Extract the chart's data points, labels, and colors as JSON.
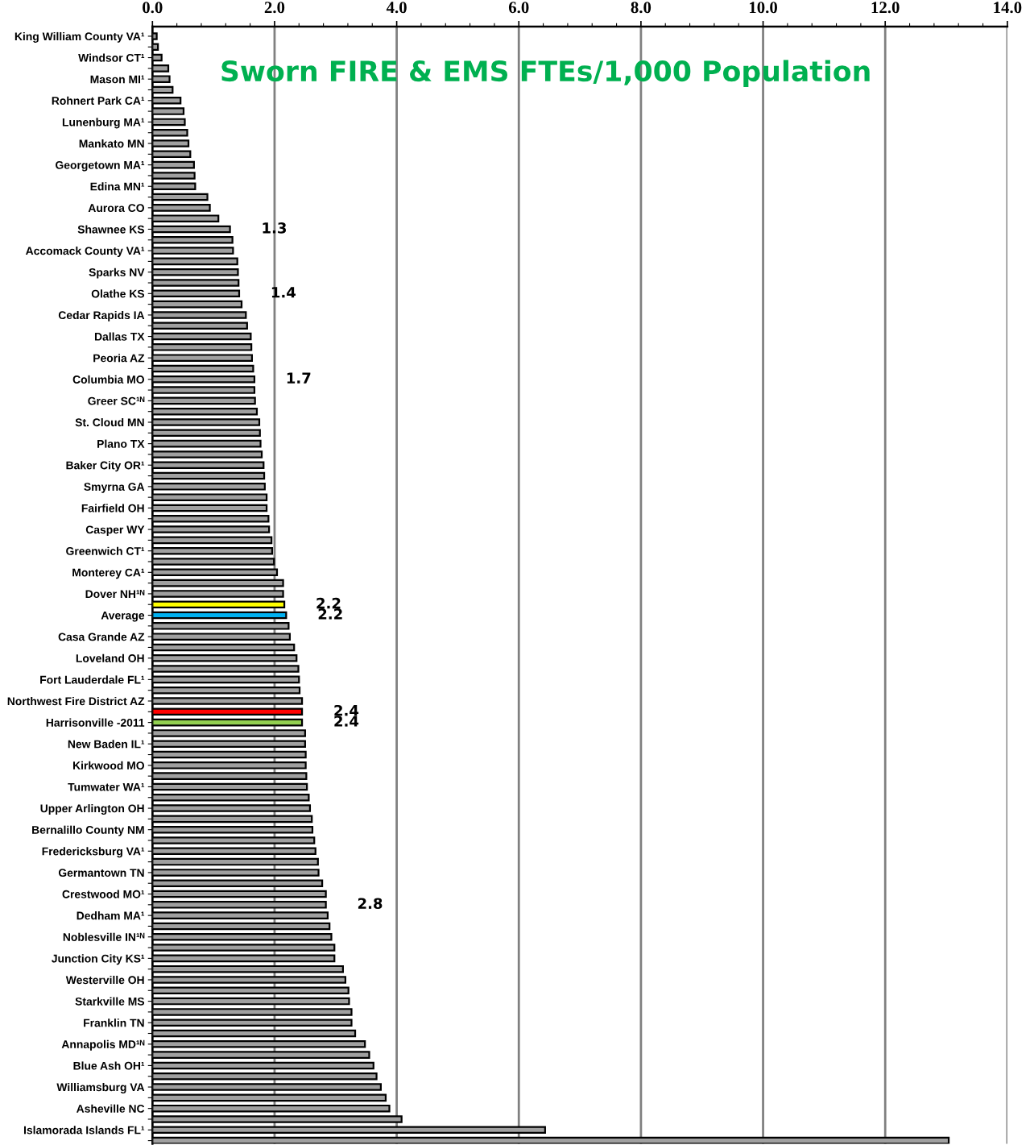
{
  "chart_data": {
    "type": "bar",
    "orientation": "horizontal",
    "title": "Sworn FIRE & EMS FTEs/1,000 Population",
    "categories": [
      "King William County VA¹",
      null,
      "Windsor CT¹",
      null,
      "Mason MI¹",
      null,
      "Rohnert Park CA¹",
      null,
      "Lunenburg MA¹",
      null,
      "Mankato MN",
      null,
      "Georgetown MA¹",
      null,
      "Edina MN¹",
      null,
      "Aurora CO",
      null,
      "Shawnee KS",
      null,
      "Accomack County VA¹",
      null,
      "Sparks NV",
      null,
      "Olathe KS",
      null,
      "Cedar Rapids IA",
      null,
      "Dallas TX",
      null,
      "Peoria AZ",
      null,
      "Columbia MO",
      null,
      "Greer SC¹ᴺ",
      null,
      "St. Cloud MN",
      null,
      "Plano TX",
      null,
      "Baker City OR¹",
      null,
      "Smyrna GA",
      null,
      "Fairfield OH",
      null,
      "Casper WY",
      null,
      "Greenwich CT¹",
      null,
      "Monterey CA¹",
      null,
      "Dover NH¹ᴺ",
      null,
      "Average",
      null,
      "Casa Grande AZ",
      null,
      "Loveland OH",
      null,
      "Fort Lauderdale FL¹",
      null,
      "Northwest Fire District AZ",
      null,
      "Harrisonville -2011",
      null,
      "New Baden IL¹",
      null,
      "Kirkwood MO",
      null,
      "Tumwater WA¹",
      null,
      "Upper Arlington OH",
      null,
      "Bernalillo County NM",
      null,
      "Fredericksburg VA¹",
      null,
      "Germantown TN",
      null,
      "Crestwood MO¹",
      null,
      "Dedham MA¹",
      null,
      "Noblesville IN¹ᴺ",
      null,
      "Junction City KS¹",
      null,
      "Westerville OH",
      null,
      "Starkville MS",
      null,
      "Franklin TN",
      null,
      "Annapolis MD¹ᴺ",
      null,
      "Blue Ash OH¹",
      null,
      "Williamsburg VA",
      null,
      "Asheville NC",
      null,
      "Islamorada Islands FL¹",
      null
    ],
    "values": [
      0.07,
      0.09,
      0.15,
      0.26,
      0.28,
      0.33,
      0.46,
      0.51,
      0.53,
      0.57,
      0.59,
      0.62,
      0.68,
      0.69,
      0.7,
      0.9,
      0.94,
      1.08,
      1.27,
      1.31,
      1.32,
      1.39,
      1.4,
      1.41,
      1.42,
      1.46,
      1.53,
      1.55,
      1.61,
      1.62,
      1.63,
      1.65,
      1.67,
      1.67,
      1.68,
      1.71,
      1.75,
      1.76,
      1.77,
      1.79,
      1.82,
      1.83,
      1.84,
      1.87,
      1.87,
      1.9,
      1.91,
      1.95,
      1.96,
      1.99,
      2.04,
      2.14,
      2.14,
      2.16,
      2.19,
      2.23,
      2.25,
      2.32,
      2.36,
      2.39,
      2.4,
      2.41,
      2.45,
      2.45,
      2.45,
      2.5,
      2.5,
      2.51,
      2.51,
      2.52,
      2.53,
      2.56,
      2.58,
      2.61,
      2.62,
      2.65,
      2.67,
      2.71,
      2.72,
      2.78,
      2.84,
      2.84,
      2.87,
      2.9,
      2.93,
      2.98,
      2.98,
      3.12,
      3.16,
      3.21,
      3.22,
      3.26,
      3.26,
      3.32,
      3.48,
      3.55,
      3.62,
      3.67,
      3.74,
      3.82,
      3.88,
      4.08,
      6.43,
      13.04
    ],
    "colors": [
      "#a0a0a0",
      "#a0a0a0",
      "#a0a0a0",
      "#a0a0a0",
      "#a0a0a0",
      "#a0a0a0",
      "#a0a0a0",
      "#a0a0a0",
      "#a0a0a0",
      "#a0a0a0",
      "#a0a0a0",
      "#a0a0a0",
      "#a0a0a0",
      "#a0a0a0",
      "#a0a0a0",
      "#a0a0a0",
      "#a0a0a0",
      "#a0a0a0",
      "#a0a0a0",
      "#a0a0a0",
      "#a0a0a0",
      "#a0a0a0",
      "#a0a0a0",
      "#a0a0a0",
      "#a0a0a0",
      "#a0a0a0",
      "#a0a0a0",
      "#a0a0a0",
      "#a0a0a0",
      "#a0a0a0",
      "#a0a0a0",
      "#a0a0a0",
      "#a0a0a0",
      "#a0a0a0",
      "#a0a0a0",
      "#a0a0a0",
      "#a0a0a0",
      "#a0a0a0",
      "#a0a0a0",
      "#a0a0a0",
      "#a0a0a0",
      "#a0a0a0",
      "#a0a0a0",
      "#a0a0a0",
      "#a0a0a0",
      "#a0a0a0",
      "#a0a0a0",
      "#a0a0a0",
      "#a0a0a0",
      "#a0a0a0",
      "#a0a0a0",
      "#a0a0a0",
      "#a0a0a0",
      "#ffff00",
      "#00b0f0",
      "#a0a0a0",
      "#a0a0a0",
      "#a0a0a0",
      "#a0a0a0",
      "#a0a0a0",
      "#a0a0a0",
      "#a0a0a0",
      "#a0a0a0",
      "#ff0000",
      "#92d050",
      "#a0a0a0",
      "#a0a0a0",
      "#a0a0a0",
      "#a0a0a0",
      "#a0a0a0",
      "#a0a0a0",
      "#a0a0a0",
      "#a0a0a0",
      "#a0a0a0",
      "#a0a0a0",
      "#a0a0a0",
      "#a0a0a0",
      "#a0a0a0",
      "#a0a0a0",
      "#a0a0a0",
      "#a0a0a0",
      "#a0a0a0",
      "#a0a0a0",
      "#a0a0a0",
      "#a0a0a0",
      "#a0a0a0",
      "#a0a0a0",
      "#a0a0a0",
      "#a0a0a0",
      "#a0a0a0",
      "#a0a0a0",
      "#a0a0a0",
      "#a0a0a0",
      "#a0a0a0",
      "#a0a0a0",
      "#a0a0a0",
      "#a0a0a0",
      "#a0a0a0",
      "#a0a0a0",
      "#a0a0a0",
      "#a0a0a0",
      "#a0a0a0",
      "#a0a0a0",
      "#a0a0a0"
    ],
    "value_labels": [
      null,
      null,
      null,
      null,
      null,
      null,
      null,
      null,
      null,
      null,
      null,
      null,
      null,
      null,
      null,
      null,
      null,
      null,
      "1.3",
      null,
      null,
      null,
      null,
      null,
      "1.4",
      null,
      null,
      null,
      null,
      null,
      null,
      null,
      "1.7",
      null,
      null,
      null,
      null,
      null,
      null,
      null,
      null,
      null,
      null,
      null,
      null,
      null,
      null,
      null,
      null,
      null,
      null,
      null,
      null,
      "2.2",
      "2.2",
      null,
      null,
      null,
      null,
      null,
      null,
      null,
      null,
      "2.4",
      "2.4",
      null,
      null,
      null,
      null,
      null,
      null,
      null,
      null,
      null,
      null,
      null,
      null,
      null,
      null,
      null,
      null,
      "2.8",
      null,
      null,
      null,
      null,
      null,
      null,
      null,
      null,
      null,
      null,
      null,
      null,
      null,
      null,
      null,
      null,
      null,
      null,
      null,
      null,
      null,
      null
    ],
    "xlim": [
      0,
      14
    ],
    "xticks": [
      {
        "value": 0,
        "label": "0.0"
      },
      {
        "value": 2,
        "label": "2.0"
      },
      {
        "value": 4,
        "label": "4.0"
      },
      {
        "value": 6,
        "label": "6.0"
      },
      {
        "value": 8,
        "label": "8.0"
      },
      {
        "value": 10,
        "label": "10.0"
      },
      {
        "value": 12,
        "label": "12.0"
      },
      {
        "value": 14,
        "label": "14.0"
      }
    ],
    "grid": "x"
  }
}
